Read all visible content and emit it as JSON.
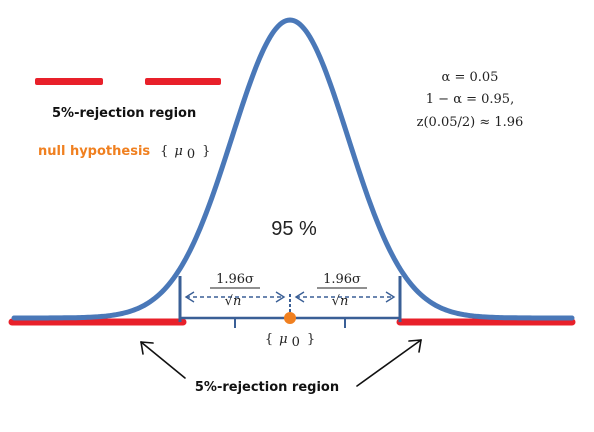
{
  "title": "",
  "colors": {
    "curve": "#4a78b8",
    "rejection": "#e8202a",
    "mean_dot": "#f08020",
    "axis": "#3a5f96",
    "text": "#222222"
  },
  "legend": {
    "rejection_label": "5%-rejection region"
  },
  "null_hypothesis": {
    "label": "null hypothesis",
    "set_open": "{",
    "mu": "μ",
    "sub": "0",
    "set_close": "}"
  },
  "params": {
    "alpha_line": "α = 0.05",
    "one_minus_alpha_line": "1 − α = 0.95,",
    "z_line": "z(0.05/2) ≈ 1.96"
  },
  "center_label": "95 %",
  "interval": {
    "numerator": "1.96σ",
    "root_symbol": "√",
    "denominator_var": "n"
  },
  "axis_label": {
    "set_open": "{",
    "mu": "μ",
    "sub": "0",
    "set_close": "}"
  },
  "bottom_label": "5%-rejection region",
  "icons": {
    "left_arrow": "arrow-up-left-icon",
    "right_arrow": "arrow-up-right-icon"
  }
}
